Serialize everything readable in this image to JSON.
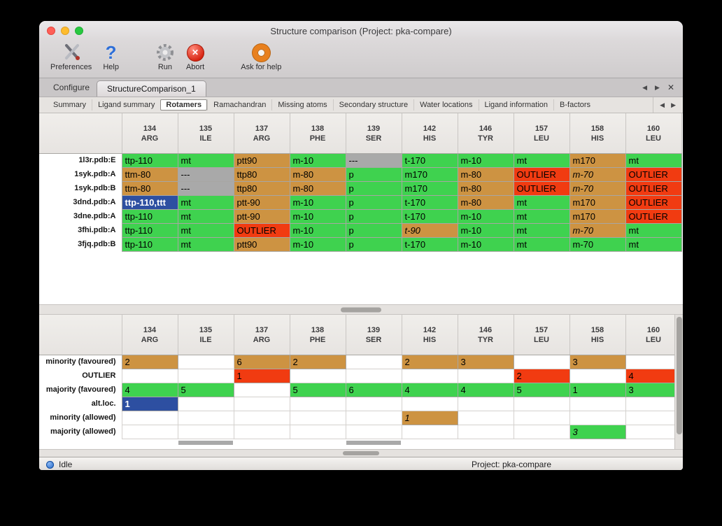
{
  "window": {
    "title": "Structure comparison (Project: pka-compare)"
  },
  "toolbar": {
    "items": [
      {
        "label": "Preferences",
        "icon": "tools-icon"
      },
      {
        "label": "Help",
        "icon": "question-icon"
      },
      {
        "label": "Run",
        "icon": "gear-icon"
      },
      {
        "label": "Abort",
        "icon": "abort-icon"
      },
      {
        "label": "Ask for help",
        "icon": "lifebuoy-icon"
      }
    ]
  },
  "tabs": {
    "items": [
      {
        "label": "Configure",
        "active": false
      },
      {
        "label": "StructureComparison_1",
        "active": true
      }
    ]
  },
  "subtabs": {
    "items": [
      "Summary",
      "Ligand summary",
      "Rotamers",
      "Ramachandran",
      "Missing atoms",
      "Secondary structure",
      "Water locations",
      "Ligand information",
      "B-factors"
    ],
    "active": "Rotamers"
  },
  "columns": [
    {
      "num": "134",
      "res": "ARG"
    },
    {
      "num": "135",
      "res": "ILE"
    },
    {
      "num": "137",
      "res": "ARG"
    },
    {
      "num": "138",
      "res": "PHE"
    },
    {
      "num": "139",
      "res": "SER"
    },
    {
      "num": "142",
      "res": "HIS"
    },
    {
      "num": "146",
      "res": "TYR"
    },
    {
      "num": "157",
      "res": "LEU"
    },
    {
      "num": "158",
      "res": "HIS"
    },
    {
      "num": "160",
      "res": "LEU"
    }
  ],
  "upper_table": {
    "rows": [
      {
        "label": "1l3r.pdb:E",
        "cells": [
          {
            "t": "ttp-110",
            "c": "green"
          },
          {
            "t": "mt",
            "c": "green"
          },
          {
            "t": "ptt90",
            "c": "tan"
          },
          {
            "t": "m-10",
            "c": "green"
          },
          {
            "t": "---",
            "c": "gray"
          },
          {
            "t": "t-170",
            "c": "green"
          },
          {
            "t": "m-10",
            "c": "green"
          },
          {
            "t": "mt",
            "c": "green"
          },
          {
            "t": "m170",
            "c": "tan"
          },
          {
            "t": "mt",
            "c": "green"
          }
        ]
      },
      {
        "label": "1syk.pdb:A",
        "cells": [
          {
            "t": "ttm-80",
            "c": "tan"
          },
          {
            "t": "---",
            "c": "gray"
          },
          {
            "t": "ttp80",
            "c": "tan"
          },
          {
            "t": "m-80",
            "c": "tan"
          },
          {
            "t": "p",
            "c": "green"
          },
          {
            "t": "m170",
            "c": "green"
          },
          {
            "t": "m-80",
            "c": "tan"
          },
          {
            "t": "OUTLIER",
            "c": "red"
          },
          {
            "t": "m-70",
            "c": "tan",
            "i": 1
          },
          {
            "t": "OUTLIER",
            "c": "red"
          }
        ]
      },
      {
        "label": "1syk.pdb:B",
        "cells": [
          {
            "t": "ttm-80",
            "c": "tan"
          },
          {
            "t": "---",
            "c": "gray"
          },
          {
            "t": "ttp80",
            "c": "tan"
          },
          {
            "t": "m-80",
            "c": "tan"
          },
          {
            "t": "p",
            "c": "green"
          },
          {
            "t": "m170",
            "c": "green"
          },
          {
            "t": "m-80",
            "c": "tan"
          },
          {
            "t": "OUTLIER",
            "c": "red"
          },
          {
            "t": "m-70",
            "c": "tan",
            "i": 1
          },
          {
            "t": "OUTLIER",
            "c": "red"
          }
        ]
      },
      {
        "label": "3dnd.pdb:A",
        "cells": [
          {
            "t": "ttp-110,ttt",
            "c": "blue"
          },
          {
            "t": "mt",
            "c": "green"
          },
          {
            "t": "ptt-90",
            "c": "tan"
          },
          {
            "t": "m-10",
            "c": "green"
          },
          {
            "t": "p",
            "c": "green"
          },
          {
            "t": "t-170",
            "c": "green"
          },
          {
            "t": "m-80",
            "c": "tan"
          },
          {
            "t": "mt",
            "c": "green"
          },
          {
            "t": "m170",
            "c": "tan"
          },
          {
            "t": "OUTLIER",
            "c": "red"
          }
        ]
      },
      {
        "label": "3dne.pdb:A",
        "cells": [
          {
            "t": "ttp-110",
            "c": "green"
          },
          {
            "t": "mt",
            "c": "green"
          },
          {
            "t": "ptt-90",
            "c": "tan"
          },
          {
            "t": "m-10",
            "c": "green"
          },
          {
            "t": "p",
            "c": "green"
          },
          {
            "t": "t-170",
            "c": "green"
          },
          {
            "t": "m-10",
            "c": "green"
          },
          {
            "t": "mt",
            "c": "green"
          },
          {
            "t": "m170",
            "c": "tan"
          },
          {
            "t": "OUTLIER",
            "c": "red"
          }
        ]
      },
      {
        "label": "3fhi.pdb:A",
        "cells": [
          {
            "t": "ttp-110",
            "c": "green"
          },
          {
            "t": "mt",
            "c": "green"
          },
          {
            "t": "OUTLIER",
            "c": "red"
          },
          {
            "t": "m-10",
            "c": "green"
          },
          {
            "t": "p",
            "c": "green"
          },
          {
            "t": "t-90",
            "c": "tan",
            "i": 1
          },
          {
            "t": "m-10",
            "c": "green"
          },
          {
            "t": "mt",
            "c": "green"
          },
          {
            "t": "m-70",
            "c": "tan",
            "i": 1
          },
          {
            "t": "mt",
            "c": "green"
          }
        ]
      },
      {
        "label": "3fjq.pdb:B",
        "cells": [
          {
            "t": "ttp-110",
            "c": "green"
          },
          {
            "t": "mt",
            "c": "green"
          },
          {
            "t": "ptt90",
            "c": "tan"
          },
          {
            "t": "m-10",
            "c": "green"
          },
          {
            "t": "p",
            "c": "green"
          },
          {
            "t": "t-170",
            "c": "green"
          },
          {
            "t": "m-10",
            "c": "green"
          },
          {
            "t": "mt",
            "c": "green"
          },
          {
            "t": "m-70",
            "c": "green"
          },
          {
            "t": "mt",
            "c": "green"
          }
        ]
      }
    ]
  },
  "lower_table": {
    "rows": [
      {
        "label": "minority (favoured)",
        "cells": [
          {
            "t": "2",
            "c": "tan"
          },
          null,
          {
            "t": "6",
            "c": "tan"
          },
          {
            "t": "2",
            "c": "tan"
          },
          null,
          {
            "t": "2",
            "c": "tan"
          },
          {
            "t": "3",
            "c": "tan"
          },
          null,
          {
            "t": "3",
            "c": "tan"
          },
          null
        ]
      },
      {
        "label": "OUTLIER",
        "cells": [
          null,
          null,
          {
            "t": "1",
            "c": "red"
          },
          null,
          null,
          null,
          null,
          {
            "t": "2",
            "c": "red"
          },
          null,
          {
            "t": "4",
            "c": "red"
          }
        ]
      },
      {
        "label": "majority (favoured)",
        "cells": [
          {
            "t": "4",
            "c": "green"
          },
          {
            "t": "5",
            "c": "green"
          },
          null,
          {
            "t": "5",
            "c": "green"
          },
          {
            "t": "6",
            "c": "green"
          },
          {
            "t": "4",
            "c": "green"
          },
          {
            "t": "4",
            "c": "green"
          },
          {
            "t": "5",
            "c": "green"
          },
          {
            "t": "1",
            "c": "green"
          },
          {
            "t": "3",
            "c": "green"
          }
        ]
      },
      {
        "label": "alt.loc.",
        "cells": [
          {
            "t": "1",
            "c": "blue"
          },
          null,
          null,
          null,
          null,
          null,
          null,
          null,
          null,
          null
        ]
      },
      {
        "label": "minority (allowed)",
        "cells": [
          null,
          null,
          null,
          null,
          null,
          {
            "t": "1",
            "c": "tan",
            "i": 1
          },
          null,
          null,
          null,
          null
        ]
      },
      {
        "label": "majority (allowed)",
        "cells": [
          null,
          null,
          null,
          null,
          null,
          null,
          null,
          null,
          {
            "t": "3",
            "c": "green",
            "i": 1
          },
          null
        ]
      }
    ],
    "clipped_cols": [
      1,
      4
    ]
  },
  "statusbar": {
    "left": "Idle",
    "right": "Project: pka-compare"
  },
  "colors": {
    "green": "#3fd24f",
    "tan": "#cd9342",
    "red": "#f13b11",
    "gray": "#a9a9a9",
    "blue": "#2d4fa1"
  }
}
